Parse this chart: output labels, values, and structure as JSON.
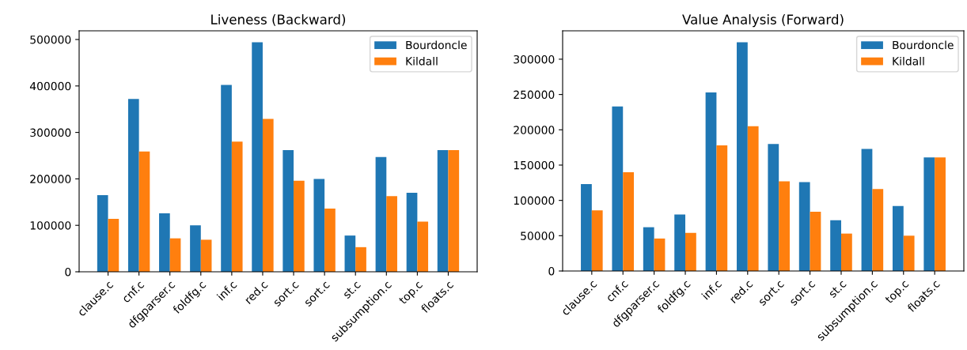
{
  "chart_data": [
    {
      "type": "bar",
      "title": "Liveness (Backward)",
      "categories": [
        "clause.c",
        "cnf.c",
        "dfgparser.c",
        "foldfg.c",
        "inf.c",
        "red.c",
        "sort.c",
        "sort.c",
        "st.c",
        "subsumption.c",
        "top.c",
        "floats.c"
      ],
      "series": [
        {
          "name": "Bourdoncle",
          "color": "#1f77b4",
          "values": [
            165000,
            372000,
            126000,
            100000,
            402000,
            494000,
            262000,
            200000,
            78000,
            247000,
            170000,
            262000
          ]
        },
        {
          "name": "Kildall",
          "color": "#ff7f0e",
          "values": [
            114000,
            259000,
            72000,
            69000,
            280000,
            329000,
            196000,
            136000,
            53000,
            163000,
            108000,
            262000
          ]
        }
      ],
      "ylim": [
        0,
        518700
      ],
      "yticks": [
        0,
        100000,
        200000,
        300000,
        400000,
        500000
      ],
      "legend": "top right",
      "grid": false
    },
    {
      "type": "bar",
      "title": "Value Analysis (Forward)",
      "categories": [
        "clause.c",
        "cnf.c",
        "dfgparser.c",
        "foldfg.c",
        "inf.c",
        "red.c",
        "sort.c",
        "sort.c",
        "st.c",
        "subsumption.c",
        "top.c",
        "floats.c"
      ],
      "series": [
        {
          "name": "Bourdoncle",
          "color": "#1f77b4",
          "values": [
            123000,
            233000,
            62000,
            80000,
            253000,
            324000,
            180000,
            126000,
            72000,
            173000,
            92000,
            161000
          ]
        },
        {
          "name": "Kildall",
          "color": "#ff7f0e",
          "values": [
            86000,
            140000,
            46000,
            54000,
            178000,
            205000,
            127000,
            84000,
            53000,
            116000,
            50000,
            161000
          ]
        }
      ],
      "ylim": [
        0,
        340200
      ],
      "yticks": [
        0,
        50000,
        100000,
        150000,
        200000,
        250000,
        300000
      ],
      "legend": "top right",
      "grid": false
    }
  ]
}
